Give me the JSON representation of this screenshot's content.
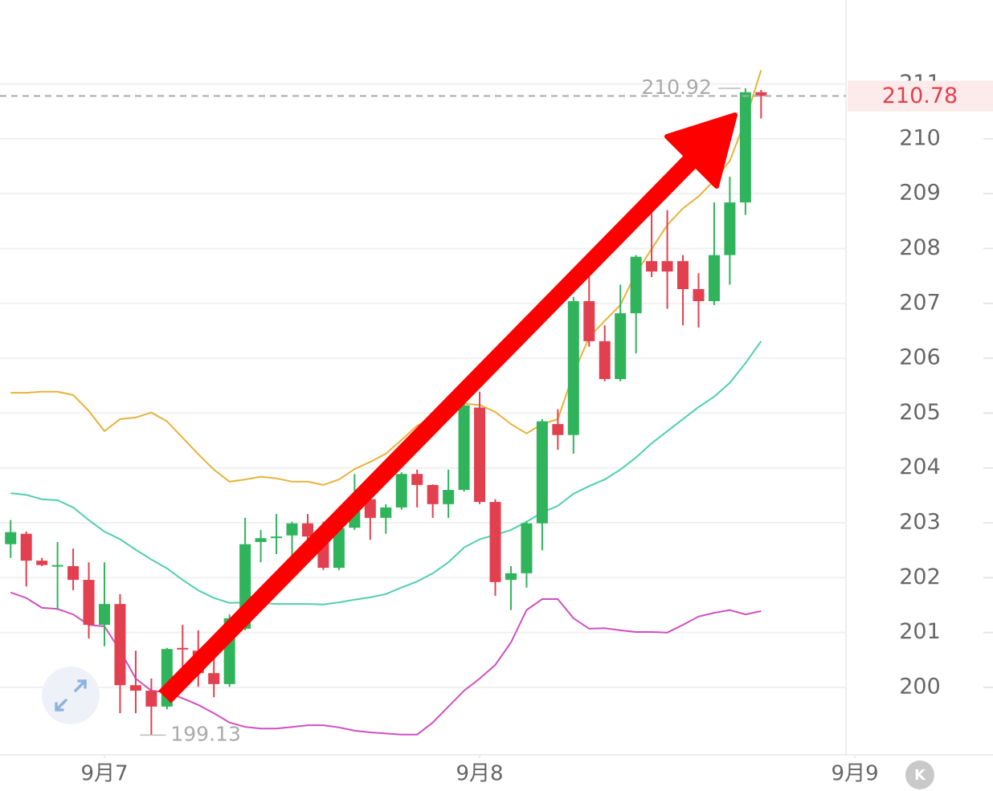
{
  "chart_data": {
    "type": "candlestick",
    "x": [
      -6,
      -5,
      -4,
      -3,
      -2,
      -1,
      0,
      1,
      2,
      3,
      4,
      5,
      6,
      7,
      8,
      9,
      10,
      11,
      12,
      13,
      14,
      15,
      16,
      17,
      18,
      19,
      20,
      21,
      22,
      23,
      24,
      25,
      26,
      27,
      28,
      29,
      30,
      31,
      32,
      33,
      34,
      35,
      36,
      37,
      38,
      39,
      40,
      41,
      42
    ],
    "open": [
      202.61,
      202.8,
      202.31,
      202.22,
      202.21,
      201.96,
      201.14,
      201.52,
      200.04,
      199.94,
      199.65,
      200.72,
      200.67,
      200.26,
      200.06,
      201.07,
      202.65,
      202.73,
      202.77,
      202.99,
      202.75,
      202.18,
      202.91,
      203.43,
      203.09,
      203.28,
      203.89,
      203.69,
      203.34,
      203.6,
      205.1,
      203.38,
      201.96,
      202.08,
      202.99,
      204.8,
      204.6,
      207.04,
      206.31,
      205.62,
      206.82,
      207.77,
      207.77,
      207.77,
      207.26,
      207.04,
      207.88,
      208.84,
      210.85
    ],
    "high": [
      203.05,
      202.84,
      202.36,
      202.65,
      202.53,
      202.28,
      202.28,
      201.7,
      200.67,
      200.16,
      200.72,
      201.14,
      201.04,
      200.89,
      201.33,
      203.09,
      202.87,
      203.16,
      203.02,
      203.16,
      203.02,
      203.16,
      203.89,
      203.82,
      203.34,
      203.92,
      203.97,
      203.7,
      203.97,
      205.21,
      205.39,
      203.43,
      202.21,
      203.02,
      204.89,
      205.07,
      207.12,
      207.55,
      206.6,
      207.34,
      207.88,
      208.7,
      208.7,
      207.88,
      207.55,
      208.84,
      209.31,
      210.92,
      210.89
    ],
    "low": [
      202.36,
      201.84,
      202.21,
      201.41,
      201.77,
      200.89,
      200.75,
      199.53,
      199.53,
      199.13,
      199.6,
      200.31,
      200.01,
      199.82,
      200.01,
      201.04,
      202.28,
      202.43,
      202.36,
      202.58,
      202.14,
      202.14,
      202.87,
      202.69,
      202.8,
      203.24,
      203.28,
      203.09,
      203.09,
      203.57,
      203.34,
      201.67,
      201.41,
      201.82,
      202.5,
      204.33,
      204.26,
      206.21,
      205.58,
      205.58,
      206.09,
      207.48,
      206.9,
      206.6,
      206.56,
      206.97,
      207.34,
      208.61,
      210.37
    ],
    "close": [
      202.83,
      202.31,
      202.23,
      202.23,
      201.96,
      201.14,
      201.52,
      200.04,
      199.94,
      199.65,
      200.7,
      200.7,
      200.26,
      200.06,
      201.26,
      202.61,
      202.72,
      202.75,
      202.99,
      202.75,
      202.18,
      202.9,
      203.34,
      203.09,
      203.28,
      203.89,
      203.69,
      203.34,
      203.6,
      205.14,
      203.38,
      201.92,
      202.08,
      202.99,
      204.85,
      204.6,
      207.04,
      206.31,
      205.62,
      206.82,
      207.85,
      207.58,
      207.58,
      207.26,
      207.04,
      207.88,
      208.84,
      210.85,
      210.78
    ],
    "up_color": "#2fb45c",
    "down_color": "#e2404e",
    "overlays": [
      {
        "color": "#e8b23a",
        "values": [
          205.37,
          205.37,
          205.39,
          205.39,
          205.33,
          205.04,
          204.67,
          204.89,
          204.92,
          205.01,
          204.85,
          204.55,
          204.25,
          203.97,
          203.75,
          203.79,
          203.84,
          203.81,
          203.75,
          203.75,
          203.69,
          203.79,
          203.98,
          204.11,
          204.26,
          204.51,
          204.77,
          204.92,
          205.1,
          205.17,
          205.15,
          205.02,
          204.8,
          204.63,
          204.8,
          204.89,
          205.72,
          206.38,
          206.68,
          206.97,
          207.55,
          207.99,
          208.43,
          208.73,
          208.95,
          209.24,
          209.6,
          210.34,
          211.25
        ]
      },
      {
        "color": "#4fcfae",
        "values": [
          203.54,
          203.51,
          203.43,
          203.41,
          203.28,
          203.05,
          202.84,
          202.7,
          202.51,
          202.33,
          202.17,
          201.96,
          201.77,
          201.63,
          201.54,
          201.55,
          201.54,
          201.52,
          201.52,
          201.52,
          201.51,
          201.55,
          201.6,
          201.64,
          201.7,
          201.82,
          201.93,
          202.08,
          202.28,
          202.55,
          202.7,
          202.78,
          202.87,
          203.02,
          203.19,
          203.31,
          203.53,
          203.67,
          203.79,
          203.97,
          204.19,
          204.45,
          204.67,
          204.89,
          205.11,
          205.3,
          205.55,
          205.91,
          206.31
        ]
      },
      {
        "color": "#cf4fc0",
        "values": [
          201.73,
          201.63,
          201.45,
          201.43,
          201.33,
          201.14,
          201.11,
          200.67,
          200.16,
          199.94,
          199.91,
          199.8,
          199.68,
          199.53,
          199.36,
          199.28,
          199.25,
          199.25,
          199.28,
          199.31,
          199.31,
          199.27,
          199.21,
          199.18,
          199.16,
          199.14,
          199.14,
          199.36,
          199.65,
          199.94,
          200.16,
          200.41,
          200.82,
          201.41,
          201.61,
          201.61,
          201.26,
          201.07,
          201.08,
          201.04,
          201.01,
          201.01,
          201.0,
          201.14,
          201.29,
          201.36,
          201.41,
          201.33,
          201.39
        ]
      }
    ],
    "xlim": [
      -6.68,
      47.43
    ],
    "xticks": [
      {
        "value": 0,
        "label": "9月7"
      },
      {
        "value": 24,
        "label": "9月8"
      },
      {
        "value": 48,
        "label": "9月9"
      }
    ],
    "ylim": [
      198.77,
      212.53
    ],
    "yticks": [
      200,
      201,
      202,
      203,
      204,
      205,
      206,
      207,
      208,
      209,
      210,
      211
    ],
    "grid": true,
    "high_label": {
      "x": 41,
      "value": 210.92
    },
    "low_label": {
      "x": 3,
      "value": 199.13
    },
    "last_price": 210.78,
    "corner_button": "K"
  }
}
